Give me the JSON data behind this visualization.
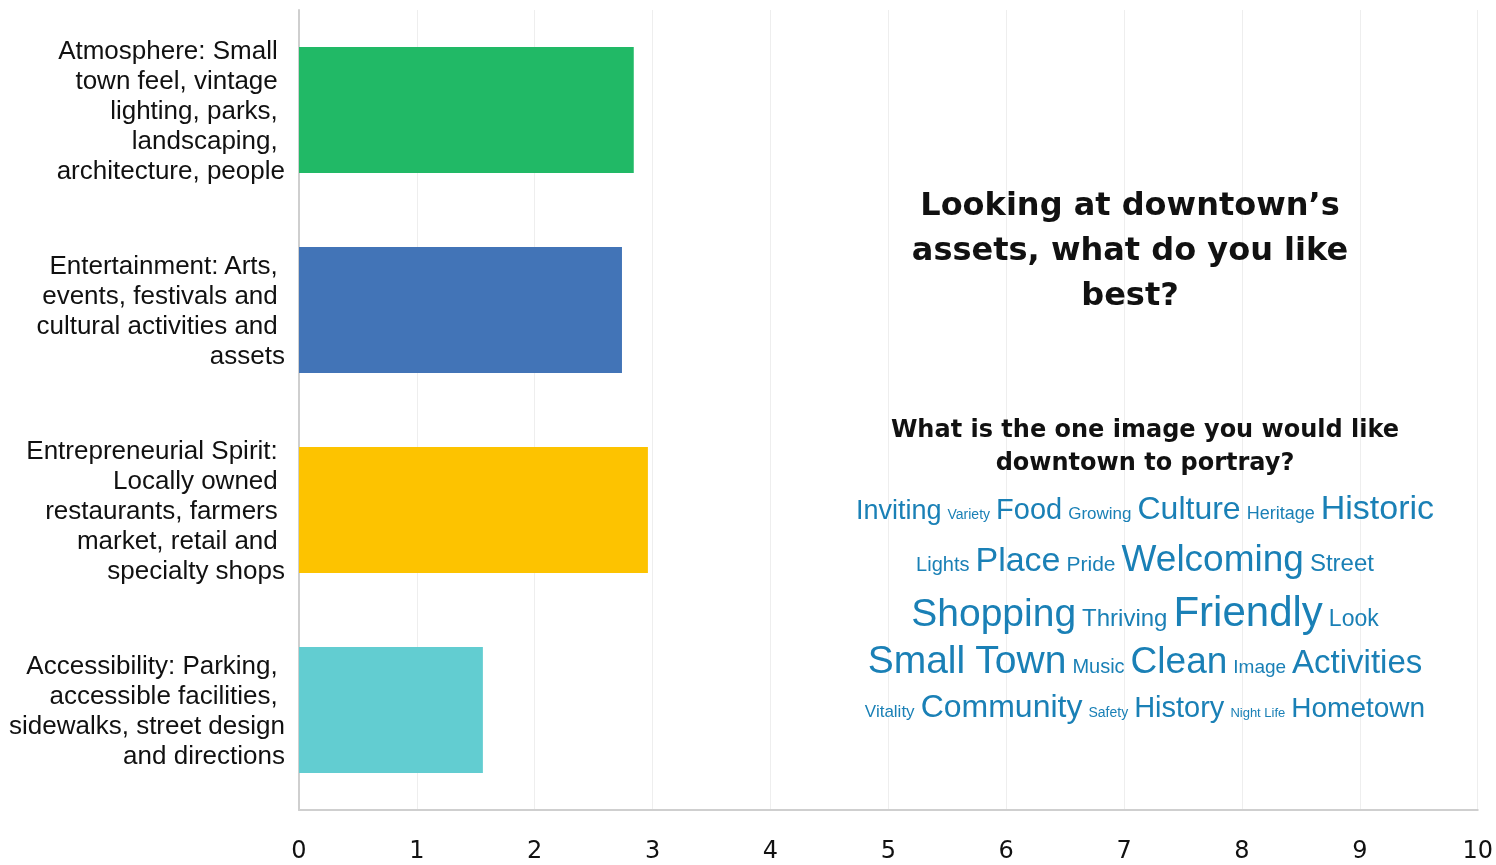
{
  "chart_data": {
    "type": "bar",
    "orientation": "horizontal",
    "title": "Looking at downtown’s assets, what do you like best?",
    "subtitle": "What is the one image you would like downtown to portray?",
    "categories": [
      "Atmosphere: Small town feel, vintage lighting, parks, landscaping, architecture, people",
      "Entertainment: Arts, events, festivals and cultural activities and assets",
      "Entrepreneurial Spirit: Locally owned restaurants, farmers market, retail and specialty shops",
      "Accessibility: Parking, accessible facilities, sidewalks, street design and directions"
    ],
    "values": [
      2.84,
      2.74,
      2.96,
      1.56
    ],
    "colors": [
      "#21b966",
      "#4274b7",
      "#fdc300",
      "#62cdd1"
    ],
    "xlim": [
      0,
      10
    ],
    "xticks": [
      0,
      1,
      2,
      3,
      4,
      5,
      6,
      7,
      8,
      9,
      10
    ],
    "grid": "x",
    "annotations": [
      "Inviting",
      "Variety",
      "Food",
      "Growing",
      "Culture",
      "Heritage",
      "Historic",
      "Lights",
      "Place",
      "Pride",
      "Welcoming",
      "Street",
      "Shopping",
      "Thriving",
      "Friendly",
      "Look",
      "Small Town",
      "Music",
      "Clean",
      "Image",
      "Activities",
      "Vitality",
      "Community",
      "Safety",
      "History",
      "Night Life",
      "Hometown"
    ]
  }
}
